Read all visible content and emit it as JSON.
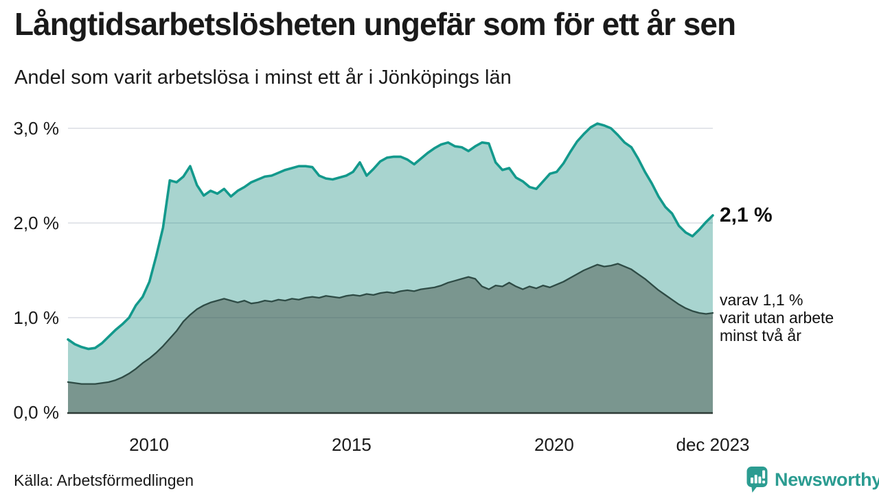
{
  "header": {
    "title": "Långtidsarbetslösheten ungefär som för ett år sen",
    "subtitle": "Andel som varit arbetslösa i minst ett år i Jönköpings län"
  },
  "footer": {
    "source": "Källa: Arbetsförmedlingen",
    "logo_text": "Newsworthy"
  },
  "colors": {
    "accent_teal": "#13998c",
    "light_area_fill": "rgba(27,143,130,0.38)",
    "dark_area_line": "#2e4b45",
    "dark_area_fill": "rgba(53,96,85,0.66)",
    "gridline": "#e3e5ea",
    "axis_line": "#2e3a37",
    "text": "#1a1a1a",
    "brand_teal": "#2b9c91"
  },
  "chart_data": {
    "type": "area",
    "x_start_year": 2008.0,
    "x_end_year": 2023.9167,
    "ylim": [
      0,
      3.2
    ],
    "grid": "horizontal",
    "y_ticks": [
      {
        "label": "0,0 %",
        "value": 0
      },
      {
        "label": "1,0 %",
        "value": 1
      },
      {
        "label": "2,0 %",
        "value": 2
      },
      {
        "label": "3,0 %",
        "value": 3
      }
    ],
    "x_ticks": [
      {
        "label": "2010",
        "year": 2010.0
      },
      {
        "label": "2015",
        "year": 2015.0
      },
      {
        "label": "2020",
        "year": 2020.0
      },
      {
        "label": "dec 2023",
        "year": 2023.9167
      }
    ],
    "series": [
      {
        "name": "arbetslösa minst ett år",
        "end_label": "2,1 %",
        "values": [
          0.77,
          0.72,
          0.69,
          0.67,
          0.68,
          0.73,
          0.8,
          0.87,
          0.93,
          1.0,
          1.13,
          1.22,
          1.38,
          1.65,
          1.95,
          2.45,
          2.43,
          2.49,
          2.6,
          2.4,
          2.29,
          2.34,
          2.31,
          2.36,
          2.28,
          2.34,
          2.38,
          2.43,
          2.46,
          2.49,
          2.5,
          2.53,
          2.56,
          2.58,
          2.6,
          2.6,
          2.59,
          2.5,
          2.47,
          2.46,
          2.48,
          2.5,
          2.54,
          2.64,
          2.5,
          2.57,
          2.65,
          2.69,
          2.7,
          2.7,
          2.67,
          2.62,
          2.68,
          2.74,
          2.79,
          2.83,
          2.85,
          2.81,
          2.8,
          2.76,
          2.81,
          2.85,
          2.84,
          2.64,
          2.56,
          2.58,
          2.48,
          2.44,
          2.38,
          2.36,
          2.44,
          2.52,
          2.54,
          2.63,
          2.75,
          2.86,
          2.94,
          3.01,
          3.05,
          3.03,
          3.0,
          2.93,
          2.85,
          2.8,
          2.68,
          2.54,
          2.42,
          2.28,
          2.17,
          2.1,
          1.97,
          1.9,
          1.86,
          1.93,
          2.01,
          2.08
        ]
      },
      {
        "name": "varav utan arbete minst två år",
        "annotation_lines": [
          "varav 1,1 %",
          "varit utan arbete",
          "minst två år"
        ],
        "values": [
          0.32,
          0.31,
          0.3,
          0.3,
          0.3,
          0.31,
          0.32,
          0.34,
          0.37,
          0.41,
          0.46,
          0.52,
          0.57,
          0.63,
          0.7,
          0.78,
          0.86,
          0.96,
          1.03,
          1.09,
          1.13,
          1.16,
          1.18,
          1.2,
          1.18,
          1.16,
          1.18,
          1.15,
          1.16,
          1.18,
          1.17,
          1.19,
          1.18,
          1.2,
          1.19,
          1.21,
          1.22,
          1.21,
          1.23,
          1.22,
          1.21,
          1.23,
          1.24,
          1.23,
          1.25,
          1.24,
          1.26,
          1.27,
          1.26,
          1.28,
          1.29,
          1.28,
          1.3,
          1.31,
          1.32,
          1.34,
          1.37,
          1.39,
          1.41,
          1.43,
          1.41,
          1.33,
          1.3,
          1.34,
          1.33,
          1.37,
          1.33,
          1.3,
          1.33,
          1.31,
          1.34,
          1.32,
          1.35,
          1.38,
          1.42,
          1.46,
          1.5,
          1.53,
          1.56,
          1.54,
          1.55,
          1.57,
          1.54,
          1.51,
          1.46,
          1.41,
          1.35,
          1.29,
          1.24,
          1.19,
          1.14,
          1.1,
          1.07,
          1.05,
          1.04,
          1.05
        ]
      }
    ]
  }
}
